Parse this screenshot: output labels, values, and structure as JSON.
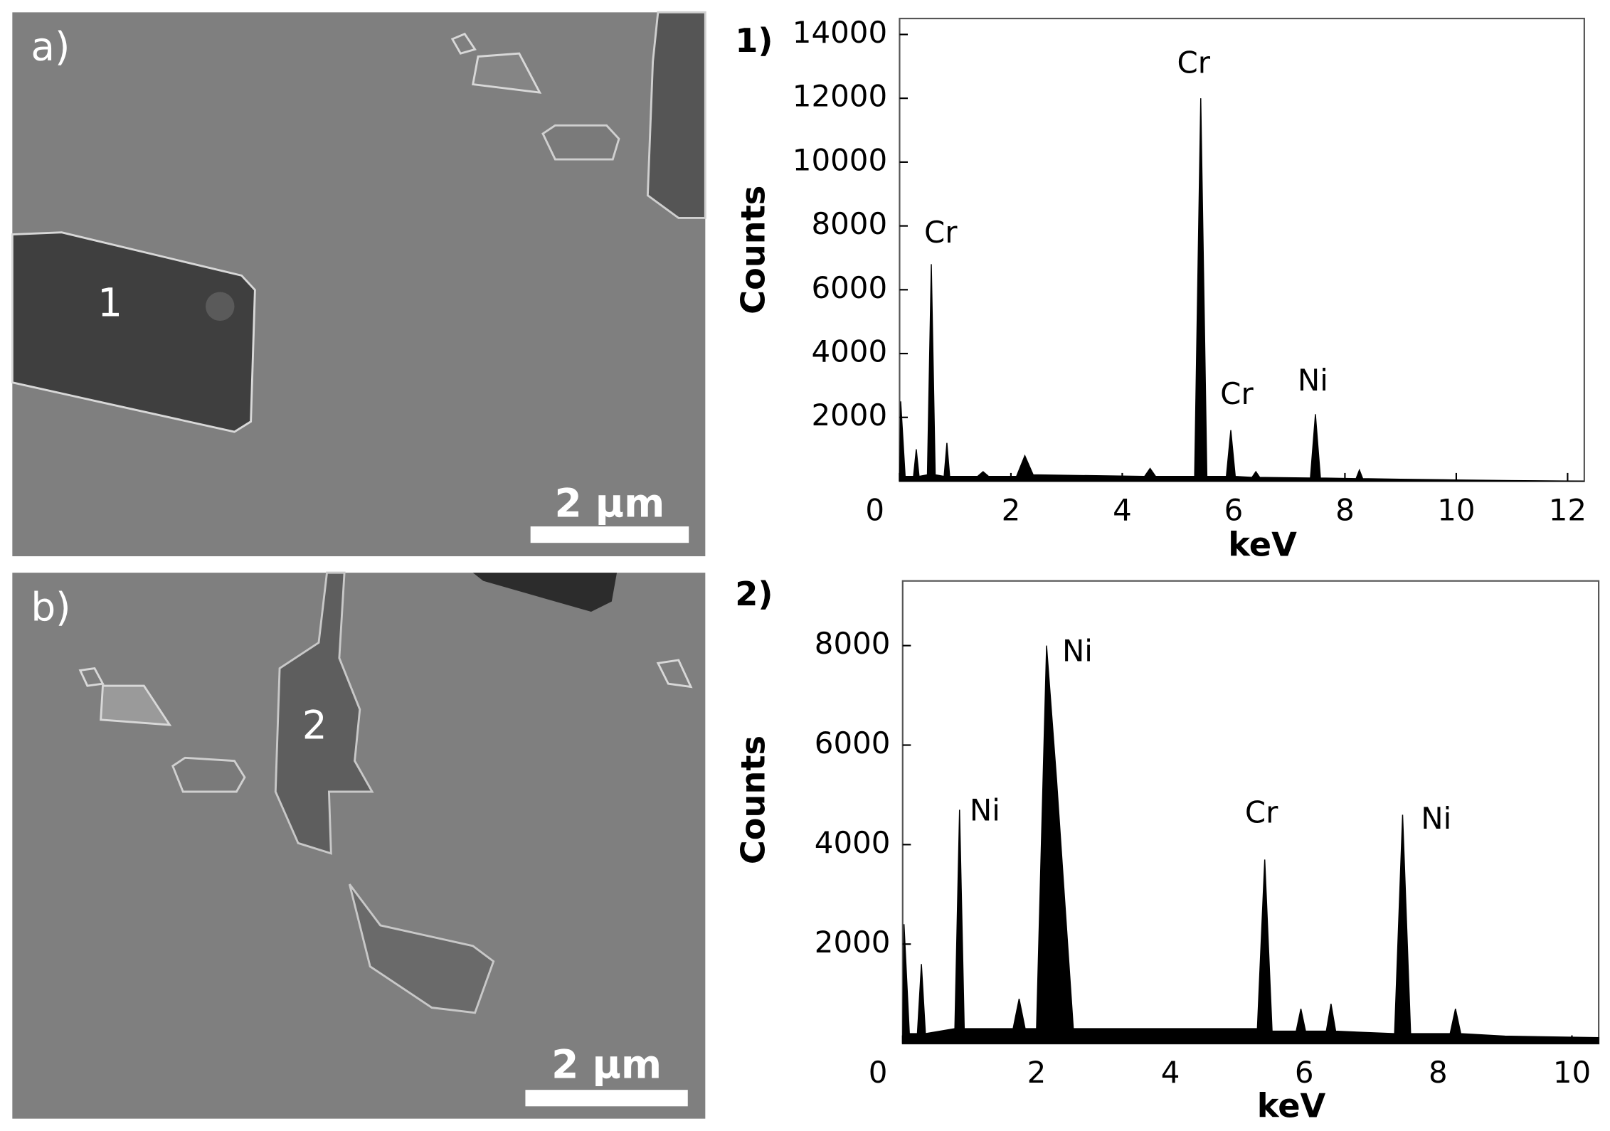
{
  "images": [
    {
      "label": "a)",
      "region": "1",
      "scale_bar": "2 µm"
    },
    {
      "label": "b)",
      "region": "2",
      "scale_bar": "2 µm"
    }
  ],
  "chart_data": [
    {
      "type": "area",
      "label": "1)",
      "x_label": "keV",
      "y_label": "Counts",
      "color": "#000000",
      "x": [
        0,
        0.02,
        0.1,
        0.25,
        0.3,
        0.35,
        0.5,
        0.57,
        0.64,
        0.8,
        0.85,
        0.9,
        1.4,
        1.5,
        1.6,
        2.1,
        2.25,
        2.4,
        4.4,
        4.5,
        4.6,
        5.3,
        5.41,
        5.52,
        5.87,
        5.95,
        6.03,
        6.33,
        6.4,
        6.47,
        7.38,
        7.47,
        7.56,
        8.2,
        8.26,
        8.32,
        9,
        10,
        11,
        12.3
      ],
      "values": [
        0,
        2500,
        150,
        150,
        1000,
        150,
        200,
        6800,
        200,
        150,
        1200,
        150,
        150,
        300,
        150,
        150,
        800,
        200,
        150,
        400,
        150,
        150,
        12000,
        150,
        150,
        1600,
        150,
        120,
        300,
        120,
        100,
        2100,
        100,
        80,
        350,
        80,
        60,
        40,
        20,
        0
      ],
      "xlim": [
        0,
        12.3
      ],
      "ylim": [
        0,
        14500
      ],
      "xticks": [
        0,
        2,
        4,
        6,
        8,
        10,
        12
      ],
      "yticks": [
        2000,
        4000,
        6000,
        8000,
        10000,
        12000,
        14000
      ],
      "annotations": [
        "Cr",
        "Cr",
        "Cr",
        "Ni"
      ]
    },
    {
      "type": "area",
      "label": "2)",
      "x_label": "keV",
      "y_label": "Counts",
      "color": "#000000",
      "x": [
        0,
        0.02,
        0.1,
        0.22,
        0.28,
        0.34,
        0.78,
        0.85,
        0.92,
        1.65,
        1.74,
        1.83,
        2.0,
        2.15,
        2.3,
        2.55,
        5.3,
        5.41,
        5.52,
        5.88,
        5.95,
        6.02,
        6.33,
        6.4,
        6.47,
        7.35,
        7.47,
        7.59,
        8.18,
        8.26,
        8.34,
        9,
        10.4
      ],
      "values": [
        0,
        2400,
        200,
        200,
        1600,
        200,
        300,
        4700,
        300,
        300,
        900,
        300,
        300,
        8000,
        5300,
        300,
        300,
        3700,
        250,
        250,
        700,
        250,
        250,
        800,
        250,
        200,
        4600,
        200,
        200,
        700,
        200,
        150,
        120
      ],
      "xlim": [
        0,
        10.4
      ],
      "ylim": [
        0,
        9300
      ],
      "xticks": [
        0,
        2,
        4,
        6,
        8,
        10
      ],
      "yticks": [
        2000,
        4000,
        6000,
        8000
      ],
      "annotations": [
        "Ni",
        "Ni",
        "Cr",
        "Ni"
      ]
    }
  ]
}
